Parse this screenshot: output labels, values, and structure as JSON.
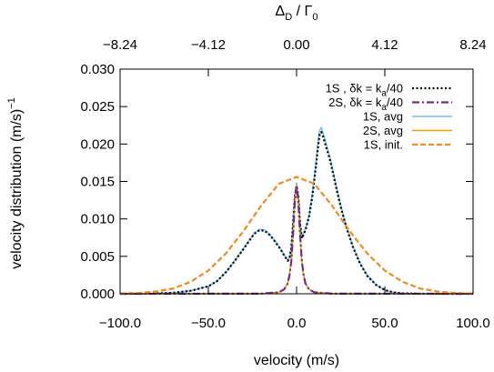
{
  "chart_data": {
    "type": "line",
    "xlabel": "velocity (m/s)",
    "ylabel": "velocity distribution (m/s)",
    "ylabel_sup": "−1",
    "top_xlabel": {
      "main": "Δ",
      "sub1": "D",
      "sep": " / Γ",
      "sub2": "0"
    },
    "xlim": [
      -100,
      100
    ],
    "ylim": [
      0,
      0.03
    ],
    "x_ticks": [
      "−100.0",
      "−50.0",
      "0.0",
      "50.0",
      "100.0"
    ],
    "x_tick_values": [
      -100,
      -50,
      0,
      50,
      100
    ],
    "y_ticks": [
      "0.000",
      "0.005",
      "0.010",
      "0.015",
      "0.020",
      "0.025",
      "0.030"
    ],
    "y_tick_values": [
      0,
      0.005,
      0.01,
      0.015,
      0.02,
      0.025,
      0.03
    ],
    "top_ticks": [
      "−8.24",
      "−4.12",
      "0.00",
      "4.12",
      "8.24"
    ],
    "top_tick_values": [
      -100,
      -50,
      0,
      50,
      100
    ],
    "grid": false,
    "legend_position": "top-right",
    "legend": [
      {
        "pre": "1S , δk = k",
        "sub": "a",
        "post": "/40",
        "color": "#000000",
        "dash": "2,2.5",
        "width": 2.2
      },
      {
        "pre": "2S, δk = k",
        "sub": "a",
        "post": "/40",
        "color": "#7b2a82",
        "dash": "8,3,2,3",
        "width": 2.2
      },
      {
        "pre": "1S, avg",
        "sub": "",
        "post": "",
        "color": "#6fc3e6",
        "dash": "",
        "width": 1.4
      },
      {
        "pre": "2S, avg",
        "sub": "",
        "post": "",
        "color": "#e5a300",
        "dash": "",
        "width": 1.4
      },
      {
        "pre": "1S, init.",
        "sub": "",
        "post": "",
        "color": "#f28a1e",
        "dash": "6,3",
        "width": 2.2
      }
    ],
    "series": [
      {
        "name": "1S, avg",
        "x": [
          -100,
          -90,
          -80,
          -70,
          -60,
          -50,
          -45,
          -40,
          -35,
          -30,
          -27,
          -24,
          -21,
          -18,
          -15,
          -12,
          -9,
          -7,
          -5,
          -4,
          -3,
          -2,
          -1,
          0,
          1,
          2,
          3,
          5,
          7,
          9,
          11,
          12,
          13,
          14,
          15,
          17,
          19,
          21,
          23,
          25,
          28,
          32,
          36,
          40,
          45,
          50,
          55,
          60,
          70,
          80,
          100
        ],
        "y": [
          0,
          1e-05,
          4e-05,
          0.00013,
          0.0004,
          0.001,
          0.0017,
          0.0029,
          0.0044,
          0.0061,
          0.0071,
          0.0081,
          0.0086,
          0.0085,
          0.0079,
          0.007,
          0.006,
          0.0052,
          0.0045,
          0.0048,
          0.0062,
          0.0095,
          0.0132,
          0.0148,
          0.0132,
          0.0095,
          0.0075,
          0.0086,
          0.0104,
          0.0135,
          0.0175,
          0.0198,
          0.0218,
          0.0222,
          0.0215,
          0.0198,
          0.0181,
          0.016,
          0.0138,
          0.0118,
          0.0092,
          0.0063,
          0.0041,
          0.0025,
          0.0012,
          0.0005,
          0.00018,
          6e-05,
          1e-05,
          0,
          0
        ]
      },
      {
        "name": "1S , δk = ka/40",
        "x": [
          -100,
          -90,
          -80,
          -70,
          -60,
          -50,
          -45,
          -40,
          -35,
          -30,
          -27,
          -24,
          -21,
          -18,
          -15,
          -12,
          -9,
          -7,
          -5,
          -4,
          -3,
          -2,
          -1,
          0,
          1,
          2,
          3,
          5,
          7,
          9,
          11,
          12,
          13,
          14,
          15,
          17,
          19,
          21,
          23,
          25,
          28,
          32,
          36,
          40,
          45,
          50,
          55,
          60,
          70,
          80,
          100
        ],
        "y": [
          0,
          1e-05,
          4e-05,
          0.00013,
          0.0004,
          0.001,
          0.0017,
          0.0029,
          0.0044,
          0.006,
          0.007,
          0.008,
          0.0085,
          0.0084,
          0.0078,
          0.0069,
          0.0059,
          0.0051,
          0.0044,
          0.0047,
          0.0061,
          0.0093,
          0.0129,
          0.0144,
          0.0129,
          0.0093,
          0.0074,
          0.0085,
          0.0102,
          0.0131,
          0.0171,
          0.0193,
          0.0212,
          0.0216,
          0.021,
          0.0194,
          0.0178,
          0.0157,
          0.0136,
          0.0116,
          0.009,
          0.0062,
          0.004,
          0.0024,
          0.0012,
          0.0005,
          0.00018,
          6e-05,
          1e-05,
          0,
          0
        ]
      },
      {
        "name": "2S, avg",
        "x": [
          -100,
          -20,
          -10,
          -7,
          -5,
          -4,
          -3,
          -2,
          -1,
          0,
          1,
          2,
          3,
          4,
          5,
          7,
          10,
          20,
          100
        ],
        "y": [
          0,
          2e-05,
          0.0002,
          0.0006,
          0.0014,
          0.0025,
          0.0043,
          0.0078,
          0.0122,
          0.0145,
          0.0122,
          0.0078,
          0.0043,
          0.0025,
          0.0014,
          0.0006,
          0.0002,
          2e-05,
          0
        ]
      },
      {
        "name": "2S, δk = ka/40",
        "x": [
          -100,
          -20,
          -10,
          -7,
          -5,
          -4,
          -3,
          -2,
          -1,
          0,
          1,
          2,
          3,
          4,
          5,
          7,
          10,
          20,
          100
        ],
        "y": [
          0,
          2e-05,
          0.0002,
          0.0006,
          0.0014,
          0.0025,
          0.0043,
          0.0078,
          0.0122,
          0.0145,
          0.0122,
          0.0078,
          0.0043,
          0.0025,
          0.0014,
          0.0006,
          0.0002,
          2e-05,
          0
        ]
      },
      {
        "name": "1S, init.",
        "x": [
          -100,
          -90,
          -80,
          -70,
          -60,
          -50,
          -40,
          -30,
          -20,
          -10,
          0,
          10,
          20,
          30,
          40,
          50,
          60,
          70,
          80,
          90,
          100
        ],
        "y": [
          3e-05,
          0.0001,
          0.0003,
          0.0007,
          0.0016,
          0.0031,
          0.0054,
          0.0084,
          0.0118,
          0.0147,
          0.0156,
          0.0147,
          0.0118,
          0.0084,
          0.0054,
          0.0031,
          0.0016,
          0.0007,
          0.0003,
          0.0001,
          3e-05
        ]
      }
    ]
  }
}
